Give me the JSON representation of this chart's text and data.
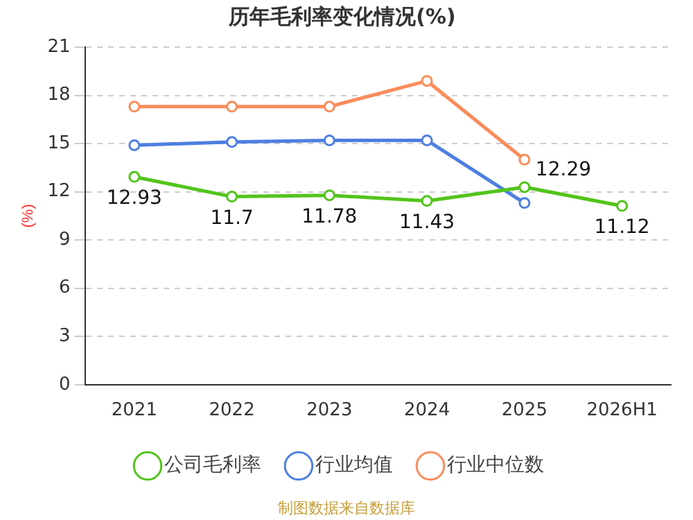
{
  "chart_data": {
    "type": "line",
    "title": "历年毛利率变化情况(%)",
    "ylabel": "(%)",
    "categories": [
      "2021",
      "2022",
      "2023",
      "2024",
      "2025",
      "2026H1"
    ],
    "series": [
      {
        "name": "公司毛利率",
        "color": "#52c41a",
        "values": [
          12.93,
          11.7,
          11.78,
          11.43,
          12.29,
          11.12
        ],
        "value_labels": [
          "12.93",
          "11.7",
          "11.78",
          "11.43",
          "12.29",
          "11.12"
        ]
      },
      {
        "name": "行业均值",
        "color": "#4e7fe0",
        "values": [
          14.9,
          15.1,
          15.2,
          15.2,
          11.3,
          null
        ]
      },
      {
        "name": "行业中位数",
        "color": "#fb8c5a",
        "values": [
          17.3,
          17.3,
          17.3,
          18.9,
          14.0,
          null
        ]
      }
    ],
    "ylim": [
      0,
      21
    ],
    "yticks": [
      0,
      3,
      6,
      9,
      12,
      15,
      18,
      21
    ],
    "grid": "y",
    "legend": "bottom",
    "marker": "circle",
    "line_style": "solid",
    "annotations": [
      "制图数据来自数据库"
    ]
  }
}
